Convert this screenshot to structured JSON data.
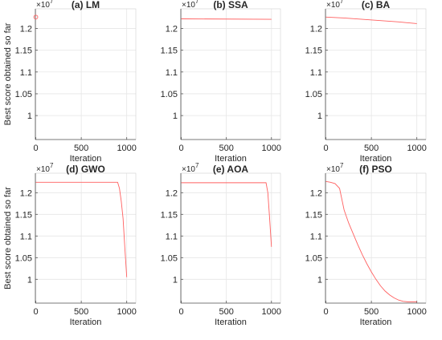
{
  "chart_data": [
    {
      "type": "line",
      "title": "(a) LM",
      "xlabel": "Iteration",
      "ylabel": "Best score obtained so far",
      "multiplier": "×10",
      "exponent": "7",
      "xlim": [
        -5,
        1100
      ],
      "ylim": [
        0.945,
        1.245
      ],
      "xticks": [
        0,
        500,
        1000
      ],
      "yticks": [
        1,
        1.05,
        1.1,
        1.15,
        1.2
      ],
      "ytick_labels": [
        "1",
        "1.05",
        "1.1",
        "1.15",
        "1.2"
      ],
      "grid": true,
      "marker": "circle",
      "color": "#ff6060",
      "series": [
        {
          "x": [
            0
          ],
          "y": [
            1.226
          ]
        }
      ]
    },
    {
      "type": "line",
      "title": "(b) SSA",
      "xlabel": "Iteration",
      "ylabel": "",
      "multiplier": "×10",
      "exponent": "7",
      "xlim": [
        -5,
        1100
      ],
      "ylim": [
        0.945,
        1.245
      ],
      "xticks": [
        0,
        500,
        1000
      ],
      "yticks": [
        1,
        1.05,
        1.1,
        1.15,
        1.2
      ],
      "ytick_labels": [
        "1",
        "1.05",
        "1.1",
        "1.15",
        "1.2"
      ],
      "grid": true,
      "color": "#ff6060",
      "series": [
        {
          "x": [
            0,
            1000
          ],
          "y": [
            1.222,
            1.221
          ]
        }
      ]
    },
    {
      "type": "line",
      "title": "(c) BA",
      "xlabel": "Iteration",
      "ylabel": "",
      "multiplier": "×10",
      "exponent": "7",
      "xlim": [
        -5,
        1100
      ],
      "ylim": [
        0.945,
        1.245
      ],
      "xticks": [
        0,
        500,
        1000
      ],
      "yticks": [
        1,
        1.05,
        1.1,
        1.15,
        1.2
      ],
      "ytick_labels": [
        "1",
        "1.05",
        "1.1",
        "1.15",
        "1.2"
      ],
      "grid": true,
      "color": "#ff6060",
      "series": [
        {
          "x": [
            0,
            200,
            400,
            600,
            800,
            1000
          ],
          "y": [
            1.226,
            1.224,
            1.221,
            1.218,
            1.215,
            1.211
          ]
        }
      ]
    },
    {
      "type": "line",
      "title": "(d) GWO",
      "xlabel": "Iteration",
      "ylabel": "Best score obtained so far",
      "multiplier": "×10",
      "exponent": "7",
      "xlim": [
        -5,
        1100
      ],
      "ylim": [
        0.945,
        1.245
      ],
      "xticks": [
        0,
        500,
        1000
      ],
      "yticks": [
        1,
        1.05,
        1.1,
        1.15,
        1.2
      ],
      "ytick_labels": [
        "1",
        "1.05",
        "1.1",
        "1.15",
        "1.2"
      ],
      "grid": true,
      "color": "#ff6060",
      "series": [
        {
          "x": [
            0,
            900,
            920,
            940,
            960,
            980,
            1000
          ],
          "y": [
            1.224,
            1.224,
            1.21,
            1.18,
            1.14,
            1.07,
            1.005
          ]
        }
      ]
    },
    {
      "type": "line",
      "title": "(e) AOA",
      "xlabel": "Iteration",
      "ylabel": "",
      "multiplier": "×10",
      "exponent": "7",
      "xlim": [
        -5,
        1100
      ],
      "ylim": [
        0.945,
        1.245
      ],
      "xticks": [
        0,
        500,
        1000
      ],
      "yticks": [
        1,
        1.05,
        1.1,
        1.15,
        1.2
      ],
      "ytick_labels": [
        "1",
        "1.05",
        "1.1",
        "1.15",
        "1.2"
      ],
      "grid": true,
      "color": "#ff6060",
      "series": [
        {
          "x": [
            0,
            940,
            960,
            980,
            1000
          ],
          "y": [
            1.223,
            1.223,
            1.2,
            1.14,
            1.075
          ]
        }
      ]
    },
    {
      "type": "line",
      "title": "(f) PSO",
      "xlabel": "Iteration",
      "ylabel": "",
      "multiplier": "×10",
      "exponent": "7",
      "xlim": [
        -5,
        1100
      ],
      "ylim": [
        0.945,
        1.245
      ],
      "xticks": [
        0,
        500,
        1000
      ],
      "yticks": [
        1,
        1.05,
        1.1,
        1.15,
        1.2
      ],
      "ytick_labels": [
        "1",
        "1.05",
        "1.1",
        "1.15",
        "1.2"
      ],
      "grid": true,
      "color": "#ff6060",
      "series": [
        {
          "x": [
            0,
            50,
            100,
            150,
            200,
            250,
            300,
            350,
            400,
            450,
            500,
            550,
            600,
            650,
            700,
            750,
            800,
            850,
            900,
            950,
            1000
          ],
          "y": [
            1.226,
            1.224,
            1.221,
            1.21,
            1.16,
            1.13,
            1.105,
            1.08,
            1.057,
            1.036,
            1.017,
            1.0,
            0.985,
            0.973,
            0.964,
            0.957,
            0.952,
            0.949,
            0.948,
            0.948,
            0.948
          ]
        }
      ]
    }
  ]
}
